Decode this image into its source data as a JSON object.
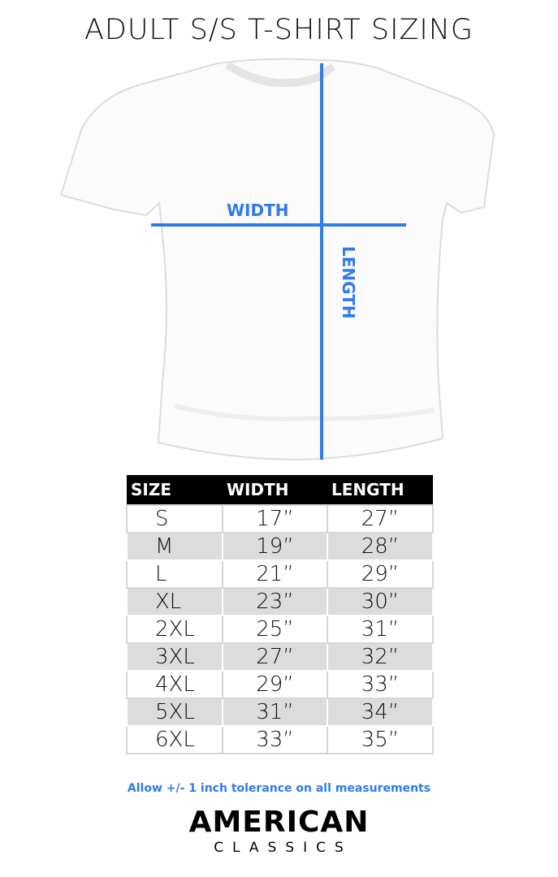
{
  "title": "ADULT S/S T-SHIRT SIZING",
  "diagram": {
    "width_label": "WIDTH",
    "length_label": "LENGTH",
    "line_color": "#2f7bea"
  },
  "table": {
    "headers": [
      "SIZE",
      "WIDTH",
      "LENGTH"
    ],
    "rows": [
      [
        "S",
        "17”",
        "27”"
      ],
      [
        "M",
        "19”",
        "28”"
      ],
      [
        "L",
        "21”",
        "29”"
      ],
      [
        "XL",
        "23”",
        "30”"
      ],
      [
        "2XL",
        "25”",
        "31”"
      ],
      [
        "3XL",
        "27”",
        "32”"
      ],
      [
        "4XL",
        "29”",
        "33”"
      ],
      [
        "5XL",
        "31”",
        "34”"
      ],
      [
        "6XL",
        "33”",
        "35”"
      ]
    ]
  },
  "note": "Allow +/- 1 inch tolerance on all measurements",
  "logo": {
    "line1": "AMERICAN",
    "line2": "CLASSICS"
  }
}
